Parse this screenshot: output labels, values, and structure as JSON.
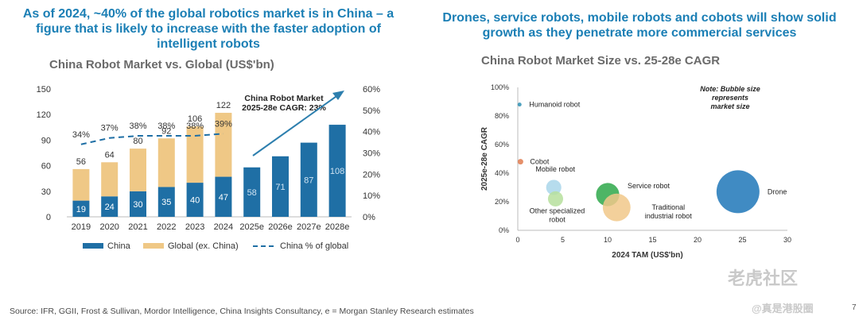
{
  "headline_left": "As  of 2024, ~40% of the global robotics market is in China – a figure that is likely to increase with the faster adoption of intelligent robots",
  "headline_right": "Drones, service robots, mobile robots and cobots will show solid growth as they penetrate more commercial services",
  "source": "Source: IFR, GGII, Frost & Sullivan, Mordor Intelligence, China Insights Consultancy, e = Morgan Stanley Research estimates",
  "watermark": {
    "logo": "老虎社区",
    "handle": "@真是港股圈"
  },
  "page_number": "7",
  "colors": {
    "china": "#1f6fa5",
    "global": "#efc886",
    "line": "#1f6fa5",
    "headline": "#1b7fb5"
  },
  "chart_data": [
    {
      "type": "bar",
      "title": "China Robot Market vs. Global (US$'bn)",
      "categories": [
        "2019",
        "2020",
        "2021",
        "2022",
        "2023",
        "2024",
        "2025e",
        "2026e",
        "2027e",
        "2028e"
      ],
      "series": [
        {
          "name": "China",
          "values": [
            19,
            24,
            30,
            35,
            40,
            47,
            58,
            71,
            87,
            108
          ]
        },
        {
          "name": "Global (ex. China)",
          "values": [
            37,
            40,
            50,
            57,
            66,
            75,
            null,
            null,
            null,
            null
          ]
        },
        {
          "name": "China % of global",
          "axis": "right",
          "values": [
            34,
            37,
            38,
            38,
            38,
            39,
            null,
            null,
            null,
            null
          ]
        }
      ],
      "total_labels": [
        56,
        64,
        80,
        92,
        106,
        122
      ],
      "pct_labels": [
        "34%",
        "37%",
        "38%",
        "38%",
        "38%",
        "39%"
      ],
      "ylim": [
        0,
        150
      ],
      "y_ticks": [
        "0",
        "30",
        "60",
        "90",
        "120",
        "150"
      ],
      "y2lim": [
        0,
        60
      ],
      "y2_ticks": [
        "0%",
        "10%",
        "20%",
        "30%",
        "40%",
        "50%",
        "60%"
      ],
      "annotation": "China Robot Market 2025-28e CAGR: 23%",
      "legend": [
        "China",
        "Global (ex. China)",
        "China % of global"
      ],
      "legend_position": "bottom"
    },
    {
      "type": "scatter",
      "subtype": "bubble",
      "title": "China Robot Market Size vs. 25-28e CAGR",
      "xlabel": "2024 TAM (US$'bn)",
      "ylabel": "2025e-28e CAGR",
      "xlim": [
        0,
        30
      ],
      "ylim": [
        0,
        100
      ],
      "x_ticks": [
        "0",
        "5",
        "10",
        "15",
        "20",
        "25",
        "30"
      ],
      "y_ticks": [
        "0%",
        "20%",
        "40%",
        "60%",
        "80%",
        "100%"
      ],
      "note": "Note: Bubble size represents market size",
      "points": [
        {
          "label": "Humanoid robot",
          "x": 0.2,
          "y": 88,
          "size": 0.2,
          "color": "#2e8fb3"
        },
        {
          "label": "Cobot",
          "x": 0.3,
          "y": 48,
          "size": 0.4,
          "color": "#e07b4f"
        },
        {
          "label": "Mobile robot",
          "x": 4,
          "y": 30,
          "size": 3,
          "color": "#a9d6ea"
        },
        {
          "label": "Other specialized robot",
          "x": 4.2,
          "y": 22,
          "size": 3,
          "color": "#b6df9c"
        },
        {
          "label": "Service robot",
          "x": 10,
          "y": 25,
          "size": 7,
          "color": "#2ea84a"
        },
        {
          "label": "Traditional industrial robot",
          "x": 11,
          "y": 16,
          "size": 10,
          "color": "#f1c88a"
        },
        {
          "label": "Drone",
          "x": 24.5,
          "y": 27,
          "size": 24,
          "color": "#1f77b8"
        }
      ]
    }
  ]
}
